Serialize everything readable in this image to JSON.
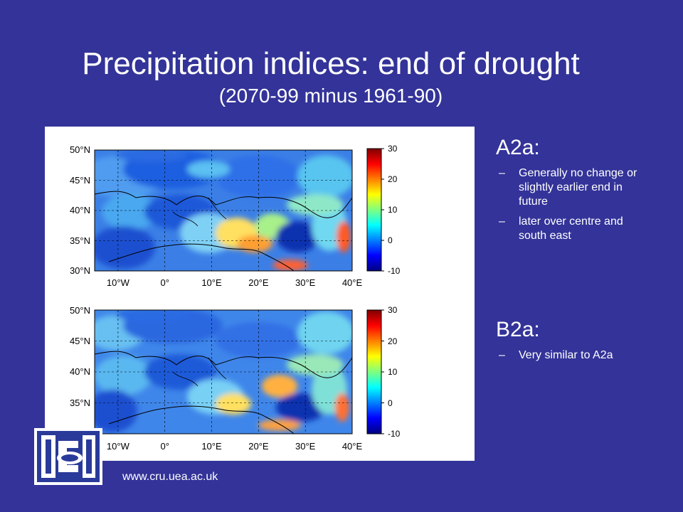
{
  "slide": {
    "title": "Precipitation indices: end of drought",
    "subtitle": "(2070-99 minus 1961-90)"
  },
  "maps": {
    "lat_labels": [
      "50°N",
      "45°N",
      "40°N",
      "35°N",
      "30°N"
    ],
    "lon_labels": [
      "10°W",
      "0°",
      "10°E",
      "20°E",
      "30°E",
      "40°E"
    ],
    "colorbar_ticks": [
      "30",
      "20",
      "10",
      "0",
      "-10"
    ],
    "lat_range": [
      30,
      50
    ],
    "lon_range": [
      -15,
      40
    ],
    "color_range": [
      -10,
      30
    ],
    "gridlines": "dashed"
  },
  "scenarios": [
    {
      "heading": "A2a:",
      "bullets": [
        "Generally no change or slightly earlier end in future",
        "later over centre and south east"
      ]
    },
    {
      "heading": "B2a:",
      "bullets": [
        "Very similar to A2a"
      ]
    }
  ],
  "footer": {
    "url": "www.cru.uea.ac.uk",
    "logo_icon": "cru-logo-icon"
  },
  "colors": {
    "background": "#333399",
    "text": "#ffffff"
  }
}
